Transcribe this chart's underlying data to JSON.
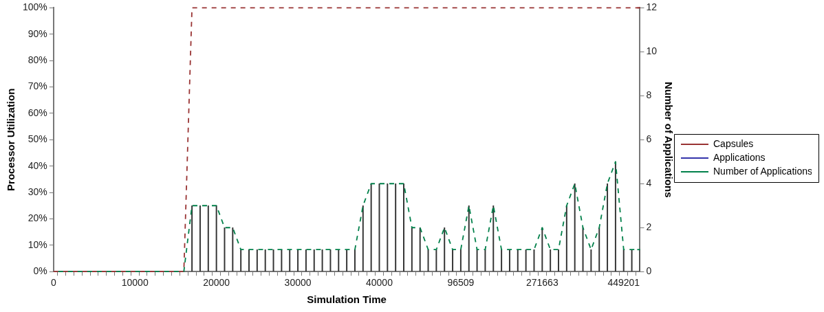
{
  "chart_data": {
    "type": "line",
    "xlabel": "Simulation Time",
    "ylabel": "Processor Utilization",
    "y2label": "Number of Applications",
    "categories": [
      "0",
      null,
      null,
      null,
      null,
      null,
      null,
      null,
      null,
      null,
      "10000",
      null,
      null,
      null,
      null,
      null,
      null,
      null,
      null,
      null,
      "20000",
      null,
      null,
      null,
      null,
      null,
      null,
      null,
      null,
      null,
      "30000",
      null,
      null,
      null,
      null,
      null,
      null,
      null,
      null,
      null,
      "40000",
      null,
      null,
      null,
      null,
      null,
      null,
      null,
      null,
      null,
      "96509",
      null,
      null,
      null,
      null,
      null,
      null,
      null,
      null,
      null,
      "271663",
      null,
      null,
      null,
      null,
      null,
      null,
      null,
      null,
      null,
      "449201",
      null,
      null
    ],
    "series": [
      {
        "name": "Capsules",
        "color": "#993333",
        "line_style": "dashed",
        "values": [
          0,
          0,
          0,
          0,
          0,
          0,
          0,
          0,
          0,
          0,
          0,
          0,
          0,
          0,
          0,
          0,
          0,
          100,
          100,
          100,
          100,
          100,
          100,
          100,
          100,
          100,
          100,
          100,
          100,
          100,
          100,
          100,
          100,
          100,
          100,
          100,
          100,
          100,
          100,
          100,
          100,
          100,
          100,
          100,
          100,
          100,
          100,
          100,
          100,
          100,
          100,
          100,
          100,
          100,
          100,
          100,
          100,
          100,
          100,
          100,
          100,
          100,
          100,
          100,
          100,
          100,
          100,
          100,
          100,
          100,
          100,
          100,
          100
        ]
      },
      {
        "name": "Applications",
        "color": "#3333aa",
        "line_style": "solid",
        "values": [
          null,
          null,
          null,
          null,
          null,
          null,
          null,
          null,
          null,
          null,
          null,
          null,
          null,
          null,
          null,
          null,
          null,
          null,
          null,
          null,
          null,
          null,
          null,
          null,
          null,
          null,
          null,
          null,
          null,
          null,
          null,
          null,
          null,
          null,
          null,
          null,
          null,
          null,
          null,
          null,
          null,
          null,
          null,
          null,
          null,
          null,
          null,
          null,
          null,
          null,
          null,
          null,
          null,
          null,
          null,
          null,
          null,
          null,
          null,
          null,
          null,
          null,
          null,
          null,
          null,
          null,
          null,
          null,
          null,
          null,
          null,
          null,
          null
        ]
      },
      {
        "name": "Number of Applications",
        "color": "#00804a",
        "line_style": "dashed",
        "axis": "y2",
        "values": [
          0,
          0,
          0,
          0,
          0,
          0,
          0,
          0,
          0,
          0,
          0,
          0,
          0,
          0,
          0,
          0,
          0,
          3,
          3,
          3,
          3,
          2,
          2,
          1,
          1,
          1,
          1,
          1,
          1,
          1,
          1,
          1,
          1,
          1,
          1,
          1,
          1,
          1,
          3,
          4,
          4,
          4,
          4,
          4,
          2,
          2,
          1,
          1,
          2,
          1,
          1,
          3,
          1,
          1,
          3,
          1,
          1,
          1,
          1,
          1,
          2,
          1,
          1,
          3,
          4,
          2,
          1,
          2,
          4,
          5,
          1,
          1,
          1
        ]
      },
      {
        "type": "bar",
        "color": "#333333",
        "axis": "y2",
        "values": [
          0,
          0,
          0,
          0,
          0,
          0,
          0,
          0,
          0,
          0,
          0,
          0,
          0,
          0,
          0,
          0,
          0,
          3,
          3,
          3,
          3,
          2,
          2,
          1,
          1,
          1,
          1,
          1,
          1,
          1,
          1,
          1,
          1,
          1,
          1,
          1,
          1,
          1,
          3,
          4,
          4,
          4,
          4,
          4,
          2,
          2,
          1,
          1,
          2,
          1,
          1,
          3,
          1,
          1,
          3,
          1,
          1,
          1,
          1,
          1,
          2,
          1,
          1,
          3,
          4,
          2,
          1,
          2,
          4,
          5,
          1,
          1,
          1
        ]
      }
    ],
    "ylim": [
      0,
      100
    ],
    "yticks": [
      {
        "value": 0,
        "label": "0%"
      },
      {
        "value": 10,
        "label": "10%"
      },
      {
        "value": 20,
        "label": "20%"
      },
      {
        "value": 30,
        "label": "30%"
      },
      {
        "value": 40,
        "label": "40%"
      },
      {
        "value": 50,
        "label": "50%"
      },
      {
        "value": 60,
        "label": "60%"
      },
      {
        "value": 70,
        "label": "70%"
      },
      {
        "value": 80,
        "label": "80%"
      },
      {
        "value": 90,
        "label": "90%"
      },
      {
        "value": 100,
        "label": "100%"
      }
    ],
    "y2lim": [
      0,
      12
    ],
    "y2ticks": [
      0,
      2,
      4,
      6,
      8,
      10,
      12
    ],
    "grid": false,
    "legend": "right",
    "marker": "none"
  }
}
